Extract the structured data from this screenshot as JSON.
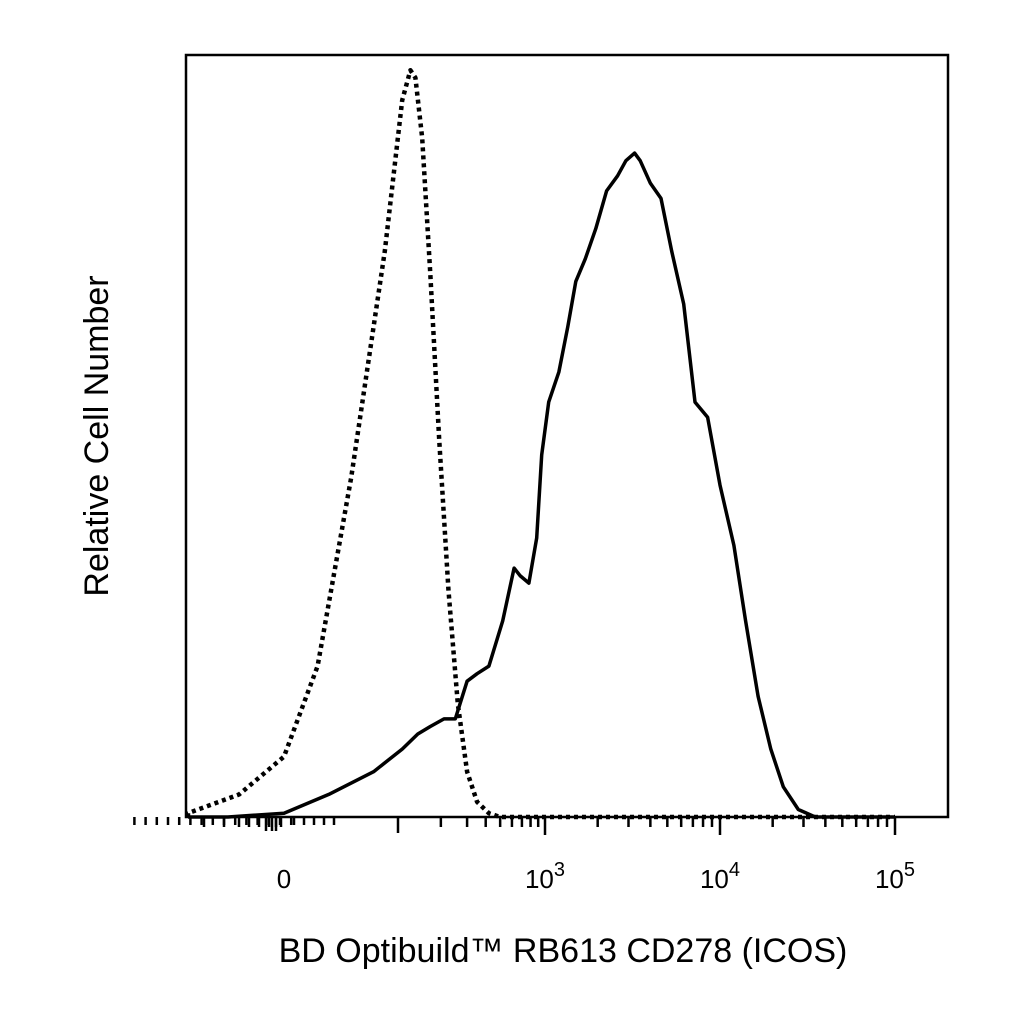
{
  "chart_data": {
    "type": "line",
    "title": "",
    "xlabel": "BD Optibuild™ RB613 CD278 (ICOS)",
    "ylabel": "Relative Cell Number",
    "x_scale": "biexponential",
    "x_tick_labels": [
      {
        "base": "0",
        "exp": ""
      },
      {
        "base": "10",
        "exp": "3"
      },
      {
        "base": "10",
        "exp": "4"
      },
      {
        "base": "10",
        "exp": "5"
      }
    ],
    "x_tick_values": [
      0,
      1000,
      10000,
      100000
    ],
    "ylim": [
      0,
      1
    ],
    "grid": false,
    "legend": "none",
    "series": [
      {
        "style": "dotted",
        "color": "#000000",
        "points": [
          [
            -150,
            0.0
          ],
          [
            -90,
            0.005
          ],
          [
            -40,
            0.03
          ],
          [
            0,
            0.08
          ],
          [
            30,
            0.2
          ],
          [
            60,
            0.45
          ],
          [
            90,
            0.75
          ],
          [
            110,
            0.95
          ],
          [
            125,
            0.99
          ],
          [
            135,
            0.98
          ],
          [
            150,
            0.9
          ],
          [
            170,
            0.72
          ],
          [
            195,
            0.5
          ],
          [
            225,
            0.3
          ],
          [
            260,
            0.15
          ],
          [
            300,
            0.06
          ],
          [
            350,
            0.02
          ],
          [
            420,
            0.005
          ],
          [
            500,
            0.0
          ],
          [
            100000,
            0.0
          ]
        ]
      },
      {
        "style": "solid",
        "color": "#000000",
        "points": [
          [
            -150,
            0.0
          ],
          [
            -50,
            0.0
          ],
          [
            0,
            0.005
          ],
          [
            40,
            0.03
          ],
          [
            80,
            0.06
          ],
          [
            110,
            0.09
          ],
          [
            140,
            0.11
          ],
          [
            170,
            0.12
          ],
          [
            210,
            0.13
          ],
          [
            250,
            0.13
          ],
          [
            300,
            0.18
          ],
          [
            350,
            0.19
          ],
          [
            420,
            0.2
          ],
          [
            520,
            0.26
          ],
          [
            620,
            0.33
          ],
          [
            680,
            0.32
          ],
          [
            780,
            0.31
          ],
          [
            880,
            0.37
          ],
          [
            950,
            0.48
          ],
          [
            1050,
            0.55
          ],
          [
            1200,
            0.59
          ],
          [
            1350,
            0.65
          ],
          [
            1500,
            0.71
          ],
          [
            1700,
            0.74
          ],
          [
            1950,
            0.78
          ],
          [
            2250,
            0.83
          ],
          [
            2600,
            0.85
          ],
          [
            2900,
            0.87
          ],
          [
            3250,
            0.88
          ],
          [
            3500,
            0.87
          ],
          [
            4000,
            0.84
          ],
          [
            4600,
            0.82
          ],
          [
            5300,
            0.75
          ],
          [
            6200,
            0.68
          ],
          [
            7200,
            0.55
          ],
          [
            8500,
            0.53
          ],
          [
            10000,
            0.44
          ],
          [
            12000,
            0.36
          ],
          [
            14000,
            0.26
          ],
          [
            16500,
            0.16
          ],
          [
            19500,
            0.09
          ],
          [
            23000,
            0.04
          ],
          [
            28000,
            0.01
          ],
          [
            35000,
            0.0
          ],
          [
            100000,
            0.0
          ]
        ]
      }
    ]
  }
}
